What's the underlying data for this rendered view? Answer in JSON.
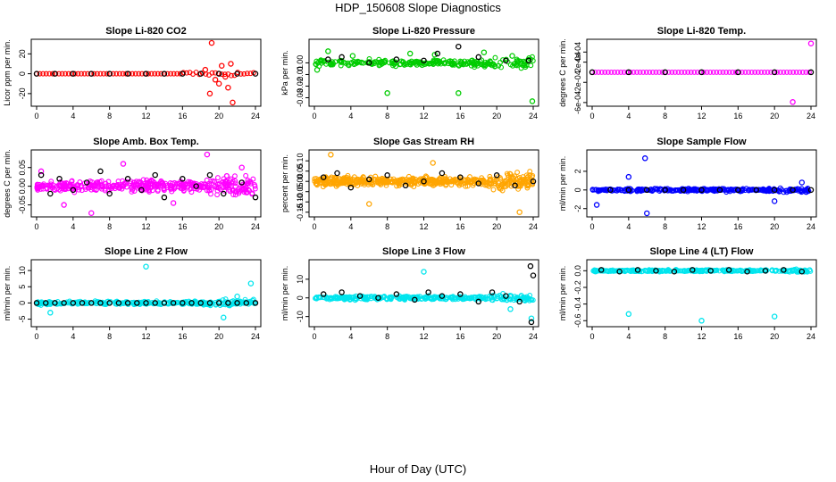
{
  "figure": {
    "title": "HDP_150608  Slope Diagnostics",
    "xlabel": "Hour of Day (UTC)"
  },
  "chart_data": [
    {
      "type": "scatter",
      "title": "Slope Li-820 CO2",
      "ylabel": "Licor ppm per min.",
      "color": "#ff0000",
      "xlim": [
        0,
        24
      ],
      "ylim": [
        -30,
        32
      ],
      "yticks": [
        "-20",
        "0",
        "20"
      ],
      "ytick_values": [
        -20,
        0,
        20
      ],
      "xticks": [
        "0",
        "4",
        "8",
        "12",
        "16",
        "20",
        "24"
      ],
      "series": [
        {
          "name": "colored",
          "x": [
            18.5,
            19.0,
            19.2,
            19.6,
            20.0,
            20.3,
            20.7,
            21.0,
            21.3,
            21.5
          ],
          "y": [
            4,
            -20,
            31,
            -6,
            -10,
            8,
            -3,
            -14,
            10,
            -29
          ]
        },
        {
          "name": "black",
          "x": [
            0,
            2,
            4,
            6,
            8,
            10,
            12,
            14,
            16,
            18,
            20,
            22,
            24
          ],
          "y": [
            0,
            0,
            0,
            0,
            0,
            0,
            0,
            0,
            0,
            0,
            0,
            0,
            0
          ]
        }
      ]
    },
    {
      "type": "scatter",
      "title": "Slope Li-820 Pressure",
      "ylabel": "kPa per min.",
      "color": "#00cc00",
      "xlim": [
        0,
        24
      ],
      "ylim": [
        -0.035,
        0.018
      ],
      "yticks": [
        "-0.03",
        "-0.02",
        "-0.01",
        "0.00"
      ],
      "ytick_values": [
        -0.03,
        -0.02,
        -0.01,
        0.0
      ],
      "xticks": [
        "0",
        "4",
        "8",
        "12",
        "16",
        "20",
        "24"
      ],
      "series": [
        {
          "name": "colored",
          "x": [
            0.3,
            8.0,
            15.8,
            23.9,
            1.5,
            4.2,
            10.5,
            13.2,
            18.6,
            21.7
          ],
          "y": [
            -0.006,
            -0.026,
            -0.026,
            -0.033,
            0.01,
            0.006,
            0.008,
            0.007,
            0.009,
            0.006
          ]
        },
        {
          "name": "black",
          "x": [
            1.5,
            3.0,
            6.0,
            9.0,
            12.0,
            13.5,
            15.8,
            18.0,
            21.0,
            23.5
          ],
          "y": [
            0.003,
            0.005,
            0.0,
            0.003,
            0.002,
            0.008,
            0.014,
            0.005,
            0.002,
            0.002
          ]
        }
      ]
    },
    {
      "type": "scatter",
      "title": "Slope Li-820 Temp.",
      "ylabel": "degrees C per min.",
      "color": "#ff00ff",
      "xlim": [
        0,
        24
      ],
      "ylim": [
        -0.00062,
        0.0006
      ],
      "yticks": [
        "-6e-04",
        "-2e-04",
        "2e-04",
        "4e-04"
      ],
      "ytick_values": [
        -0.0006,
        -0.0002,
        0.0002,
        0.0004
      ],
      "xticks": [
        "0",
        "4",
        "8",
        "12",
        "16",
        "20",
        "24"
      ],
      "series": [
        {
          "name": "colored",
          "x": [
            22.0,
            24.0
          ],
          "y": [
            -0.00059,
            0.00057
          ]
        },
        {
          "name": "black",
          "x": [
            0,
            4,
            8,
            12,
            16,
            20,
            24
          ],
          "y": [
            0,
            0,
            0,
            0,
            0,
            0,
            0
          ]
        }
      ]
    },
    {
      "type": "scatter",
      "title": "Slope Amb. Box Temp.",
      "ylabel": "degrees C per min.",
      "color": "#ff00ff",
      "xlim": [
        0,
        24
      ],
      "ylim": [
        -0.075,
        0.09
      ],
      "yticks": [
        "-0.05",
        "0.00",
        "0.05"
      ],
      "ytick_values": [
        -0.05,
        0.0,
        0.05
      ],
      "xticks": [
        "0",
        "4",
        "8",
        "12",
        "16",
        "20",
        "24"
      ],
      "series": [
        {
          "name": "colored",
          "x": [
            6.0,
            18.7,
            0.5,
            3.0,
            9.5,
            15.0,
            22.5
          ],
          "y": [
            -0.072,
            0.085,
            0.04,
            -0.05,
            0.06,
            -0.045,
            0.05
          ]
        },
        {
          "name": "black",
          "x": [
            0.5,
            1.5,
            2.5,
            4.0,
            5.5,
            7.0,
            8.0,
            10.0,
            11.5,
            13.0,
            14.0,
            16.0,
            17.5,
            19.0,
            20.5,
            22.5,
            24.0
          ],
          "y": [
            0.03,
            -0.02,
            0.02,
            -0.01,
            0.01,
            0.04,
            -0.02,
            0.02,
            -0.01,
            0.03,
            -0.03,
            0.02,
            0.0,
            0.03,
            -0.02,
            0.01,
            -0.03
          ]
        }
      ]
    },
    {
      "type": "scatter",
      "title": "Slope Gas Stream RH",
      "ylabel": "percent per min.",
      "color": "#ffa500",
      "xlim": [
        0,
        24
      ],
      "ylim": [
        -0.16,
        0.14
      ],
      "yticks": [
        "-0.15",
        "-0.10",
        "-0.05",
        "0.00",
        "0.05",
        "0.10"
      ],
      "ytick_values": [
        -0.15,
        -0.1,
        -0.05,
        0.0,
        0.05,
        0.1
      ],
      "xticks": [
        "0",
        "4",
        "8",
        "12",
        "16",
        "20",
        "24"
      ],
      "series": [
        {
          "name": "colored",
          "x": [
            1.8,
            22.5,
            6.0,
            13.0
          ],
          "y": [
            0.13,
            -0.15,
            -0.11,
            0.09
          ]
        },
        {
          "name": "black",
          "x": [
            1.0,
            2.5,
            4.0,
            6.0,
            8.0,
            10.0,
            12.0,
            14.0,
            16.0,
            18.0,
            20.0,
            22.0,
            24.0
          ],
          "y": [
            0.02,
            0.04,
            -0.03,
            0.01,
            0.03,
            -0.02,
            0.0,
            0.04,
            0.02,
            -0.01,
            0.03,
            -0.02,
            0.0
          ]
        }
      ]
    },
    {
      "type": "scatter",
      "title": "Slope Sample Flow",
      "ylabel": "ml/min per min.",
      "color": "#0000ff",
      "xlim": [
        0,
        24
      ],
      "ylim": [
        -2.6,
        4.0
      ],
      "yticks": [
        "-2",
        "0",
        "2"
      ],
      "ytick_values": [
        -2,
        0,
        2
      ],
      "xticks": [
        "0",
        "4",
        "8",
        "12",
        "16",
        "20",
        "24"
      ],
      "series": [
        {
          "name": "colored",
          "x": [
            0.5,
            4.0,
            5.8,
            6.0,
            20.0,
            23.0
          ],
          "y": [
            -1.6,
            1.4,
            3.4,
            -2.5,
            -1.2,
            0.8
          ]
        },
        {
          "name": "black",
          "x": [
            2,
            4,
            6,
            8,
            10,
            12,
            14,
            16,
            18,
            20,
            22,
            24
          ],
          "y": [
            0,
            0,
            0,
            0,
            0,
            0,
            0,
            0,
            0,
            0,
            0,
            0
          ]
        }
      ]
    },
    {
      "type": "scatter",
      "title": "Slope Line 2 Flow",
      "ylabel": "ml/min per min.",
      "color": "#00e5ee",
      "xlim": [
        0,
        24
      ],
      "ylim": [
        -6.5,
        12.5
      ],
      "yticks": [
        "-5",
        "0",
        "5",
        "10"
      ],
      "ytick_values": [
        -5,
        0,
        5,
        10
      ],
      "xticks": [
        "0",
        "4",
        "8",
        "12",
        "16",
        "20",
        "24"
      ],
      "series": [
        {
          "name": "colored",
          "x": [
            12.0,
            20.5,
            23.5,
            22.0,
            1.5
          ],
          "y": [
            11.2,
            -4.5,
            6,
            2,
            -3
          ]
        },
        {
          "name": "black",
          "x": [
            0,
            1,
            2,
            3,
            4,
            5,
            6,
            7,
            8,
            9,
            10,
            11,
            12,
            13,
            14,
            15,
            16,
            17,
            18,
            19,
            20,
            21,
            22,
            23,
            24
          ],
          "y": [
            0,
            0,
            0,
            0,
            0,
            0,
            0,
            0,
            0,
            0,
            0,
            0,
            0,
            0,
            0,
            0,
            0,
            0,
            0,
            0,
            0,
            0,
            0,
            0,
            0
          ]
        }
      ]
    },
    {
      "type": "scatter",
      "title": "Slope Line 3 Flow",
      "ylabel": "ml/min per min.",
      "color": "#00e5ee",
      "xlim": [
        0,
        24
      ],
      "ylim": [
        -14,
        19
      ],
      "yticks": [
        "-10",
        "0",
        "10"
      ],
      "ytick_values": [
        -10,
        0,
        10
      ],
      "xticks": [
        "0",
        "4",
        "8",
        "12",
        "16",
        "20",
        "24"
      ],
      "series": [
        {
          "name": "colored",
          "x": [
            12.0,
            23.8,
            21.5
          ],
          "y": [
            14,
            -11,
            -6
          ]
        },
        {
          "name": "black",
          "x": [
            1.0,
            3.0,
            5.0,
            7.0,
            9.0,
            11.0,
            12.5,
            14.0,
            16.0,
            18.0,
            19.5,
            21.0,
            22.5,
            23.7,
            23.8,
            24.0
          ],
          "y": [
            2,
            3,
            1,
            0,
            2,
            -1,
            3,
            1,
            2,
            -2,
            3,
            1,
            -2,
            17,
            -13,
            12
          ]
        }
      ]
    },
    {
      "type": "scatter",
      "title": "Slope Line 4 (LT) Flow",
      "ylabel": "ml/min per min.",
      "color": "#00e5ee",
      "xlim": [
        0,
        24
      ],
      "ylim": [
        -0.64,
        0.1
      ],
      "yticks": [
        "-0.6",
        "-0.4",
        "-0.2",
        "0.0"
      ],
      "ytick_values": [
        -0.6,
        -0.4,
        -0.2,
        0.0
      ],
      "xticks": [
        "0",
        "4",
        "8",
        "12",
        "16",
        "20",
        "24"
      ],
      "series": [
        {
          "name": "colored",
          "x": [
            4.0,
            12.0,
            20.0
          ],
          "y": [
            -0.52,
            -0.6,
            -0.55
          ]
        },
        {
          "name": "black",
          "x": [
            1,
            3,
            5,
            7,
            9,
            11,
            13,
            15,
            17,
            19,
            21,
            23
          ],
          "y": [
            0.01,
            -0.01,
            0.01,
            0.0,
            -0.01,
            0.01,
            0.0,
            0.01,
            -0.01,
            0.0,
            0.01,
            -0.01
          ]
        }
      ]
    }
  ]
}
